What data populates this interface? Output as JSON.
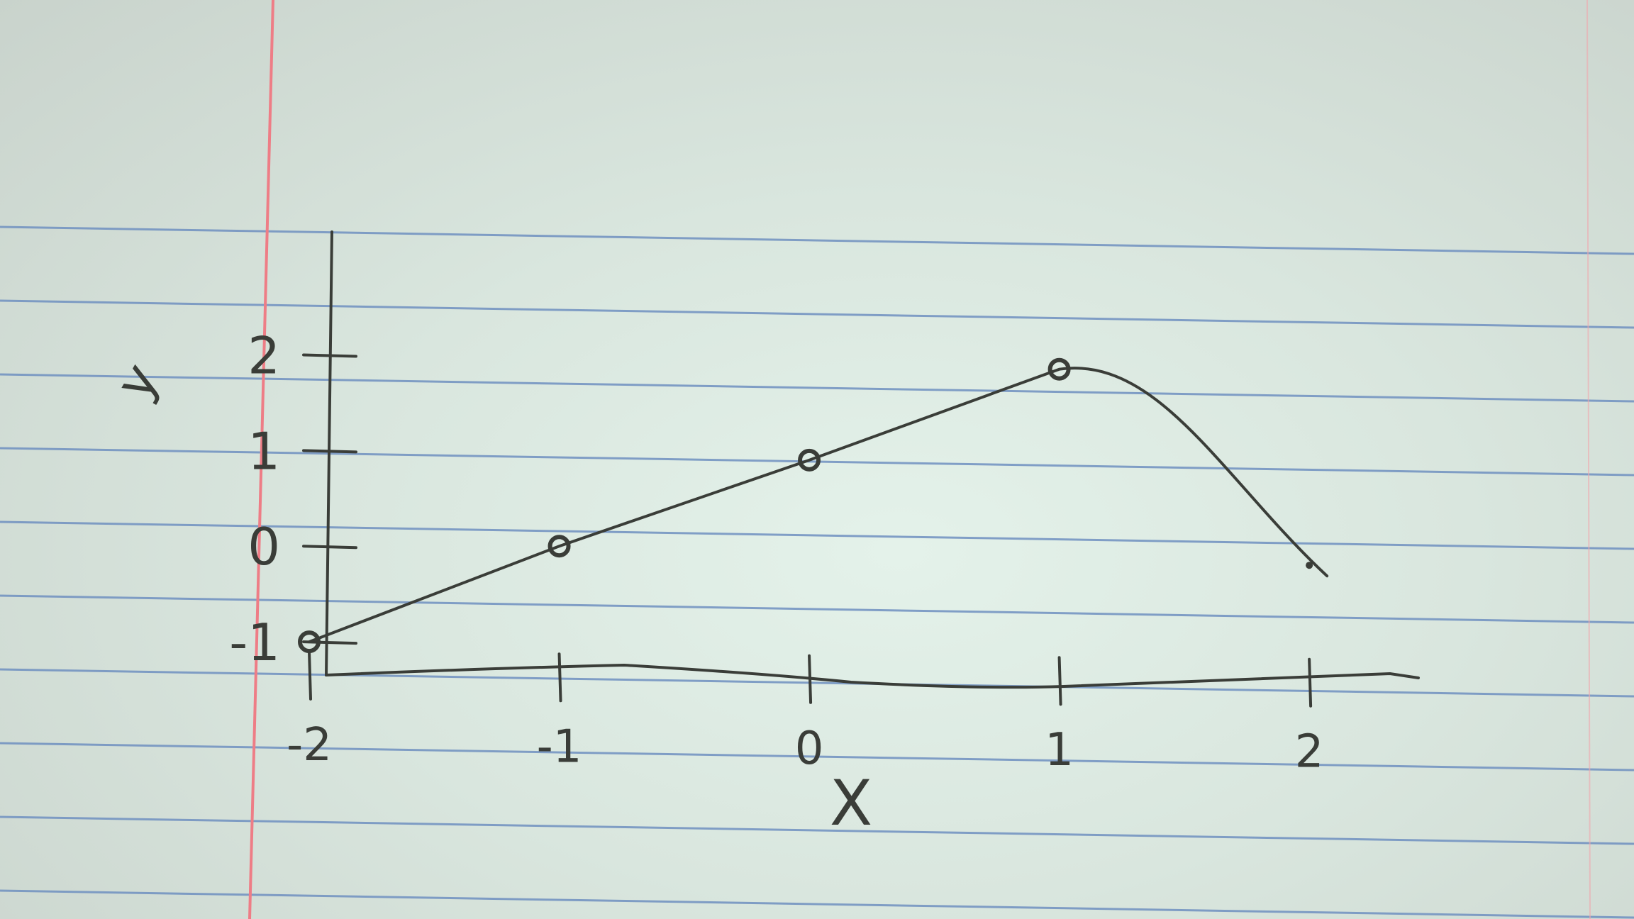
{
  "chart_data": {
    "type": "line",
    "x": [
      -2,
      -1,
      0,
      1,
      2
    ],
    "y": [
      -1,
      0,
      0.9,
      1.85,
      -0.2
    ],
    "markers": [
      true,
      true,
      true,
      true,
      false
    ],
    "xlabel": "X",
    "ylabel": "y",
    "xticks": [
      "-2",
      "-1",
      "0",
      "1",
      "2"
    ],
    "yticks": [
      "-1",
      "0",
      "1",
      "2"
    ],
    "xlim": [
      -2.4,
      2.55
    ],
    "ylim": [
      -2.0,
      2.3
    ],
    "grid": false,
    "colors": {
      "ink": "#3a3d38",
      "rule": "#6f8fc0",
      "margin": "#ee7d86"
    }
  }
}
